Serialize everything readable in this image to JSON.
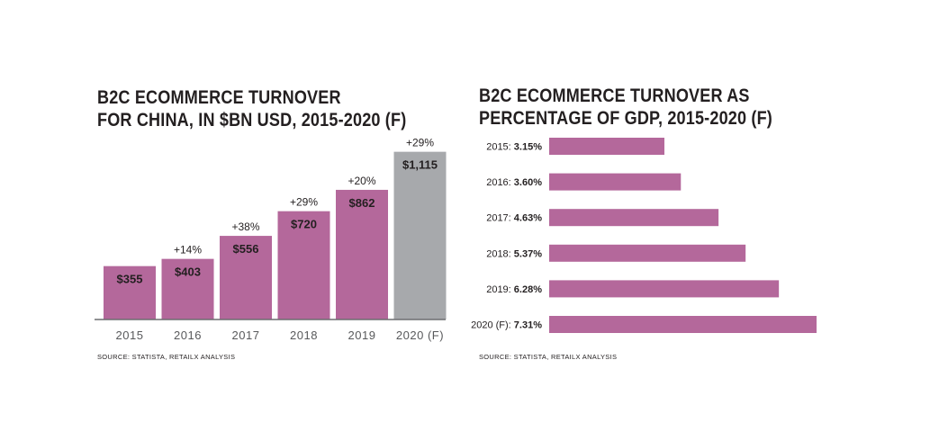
{
  "colors": {
    "bar": "#b4689b",
    "forecast_bar": "#a7a9ac",
    "axis": "#6d6e71",
    "text": "#231f20",
    "tick": "#58595b"
  },
  "left": {
    "title_line1": "B2C ECOMMERCE TURNOVER",
    "title_line2": "FOR CHINA, IN $BN USD, 2015-2020 (F)",
    "source": "SOURCE: STATISTA, RETAILX ANALYSIS"
  },
  "right": {
    "title_line1": "B2C ECOMMERCE TURNOVER AS",
    "title_line2": "PERCENTAGE OF GDP, 2015-2020 (F)",
    "source": "SOURCE: STATISTA, RETAILX ANALYSIS"
  },
  "chart_data": [
    {
      "type": "bar",
      "title": "B2C ECOMMERCE TURNOVER FOR CHINA, IN $BN USD, 2015-2020 (F)",
      "categories": [
        "2015",
        "2016",
        "2017",
        "2018",
        "2019",
        "2020 (F)"
      ],
      "values": [
        355,
        403,
        556,
        720,
        862,
        1115
      ],
      "value_labels": [
        "$355",
        "$403",
        "$556",
        "$720",
        "$862",
        "$1,115"
      ],
      "growth_labels": [
        "",
        "+14%",
        "+38%",
        "+29%",
        "+20%",
        "+29%"
      ],
      "forecast": [
        false,
        false,
        false,
        false,
        false,
        true
      ],
      "ylim": [
        0,
        1200
      ],
      "grid": false
    },
    {
      "type": "bar",
      "orientation": "horizontal",
      "title": "B2C ECOMMERCE TURNOVER AS PERCENTAGE OF GDP, 2015-2020 (F)",
      "categories": [
        "2015",
        "2016",
        "2017",
        "2018",
        "2019",
        "2020 (F)"
      ],
      "values": [
        3.15,
        3.6,
        4.63,
        5.37,
        6.28,
        7.31
      ],
      "row_labels": [
        "2015:",
        "2016:",
        "2017:",
        "2018:",
        "2019:",
        "2020 (F):"
      ],
      "value_labels": [
        "3.15%",
        "3.60%",
        "4.63%",
        "5.37%",
        "6.28%",
        "7.31%"
      ],
      "xlim": [
        0,
        7.31
      ],
      "grid": false
    }
  ]
}
